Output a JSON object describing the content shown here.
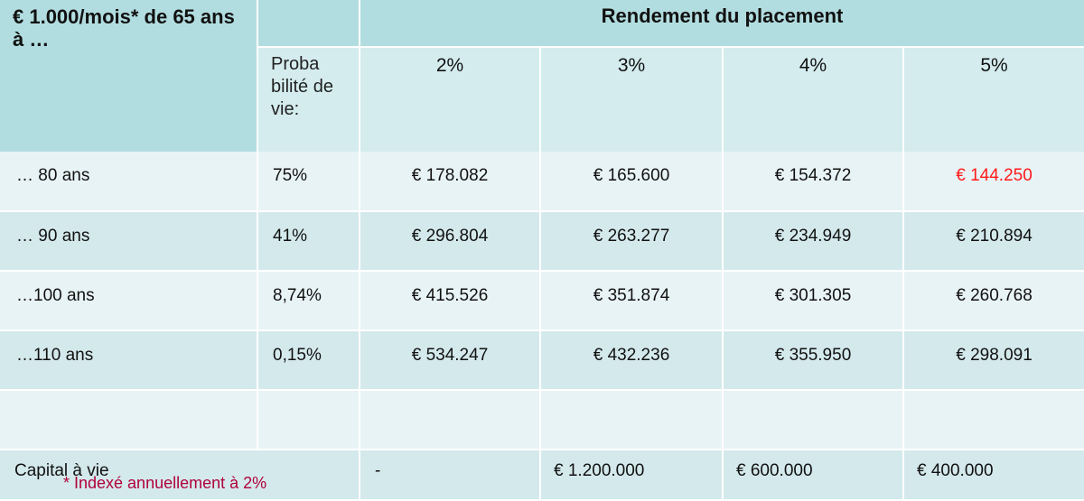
{
  "header": {
    "title": "€ 1.000/mois* de 65 ans à …",
    "rendement_label": "Rendement du placement",
    "proba_label": "Proba bilité de vie:",
    "rates": [
      "2%",
      "3%",
      "4%",
      "5%"
    ]
  },
  "rows": [
    {
      "label": "… 80 ans",
      "prob": "75%",
      "values": [
        "€ 178.082",
        "€ 165.600",
        "€ 154.372",
        "€ 144.250"
      ]
    },
    {
      "label": "… 90 ans",
      "prob": "41%",
      "values": [
        "€ 296.804",
        "€ 263.277",
        "€ 234.949",
        "€ 210.894"
      ]
    },
    {
      "label": "…100 ans",
      "prob": "8,74%",
      "values": [
        "€ 415.526",
        "€ 351.874",
        "€ 301.305",
        "€ 260.768"
      ]
    },
    {
      "label": "…110 ans",
      "prob": "0,15%",
      "values": [
        "€ 534.247",
        "€ 432.236",
        "€ 355.950",
        "€ 298.091"
      ]
    }
  ],
  "capital": {
    "label": "Capital à vie",
    "values": [
      "-",
      "€ 1.200.000",
      "€ 600.000",
      "€ 400.000"
    ]
  },
  "footnote": "* Indexé annuellement à 2%",
  "colors": {
    "highlight": "#ff1a1a",
    "footnote": "#b0003a",
    "header_bg": "#b2dde0"
  }
}
